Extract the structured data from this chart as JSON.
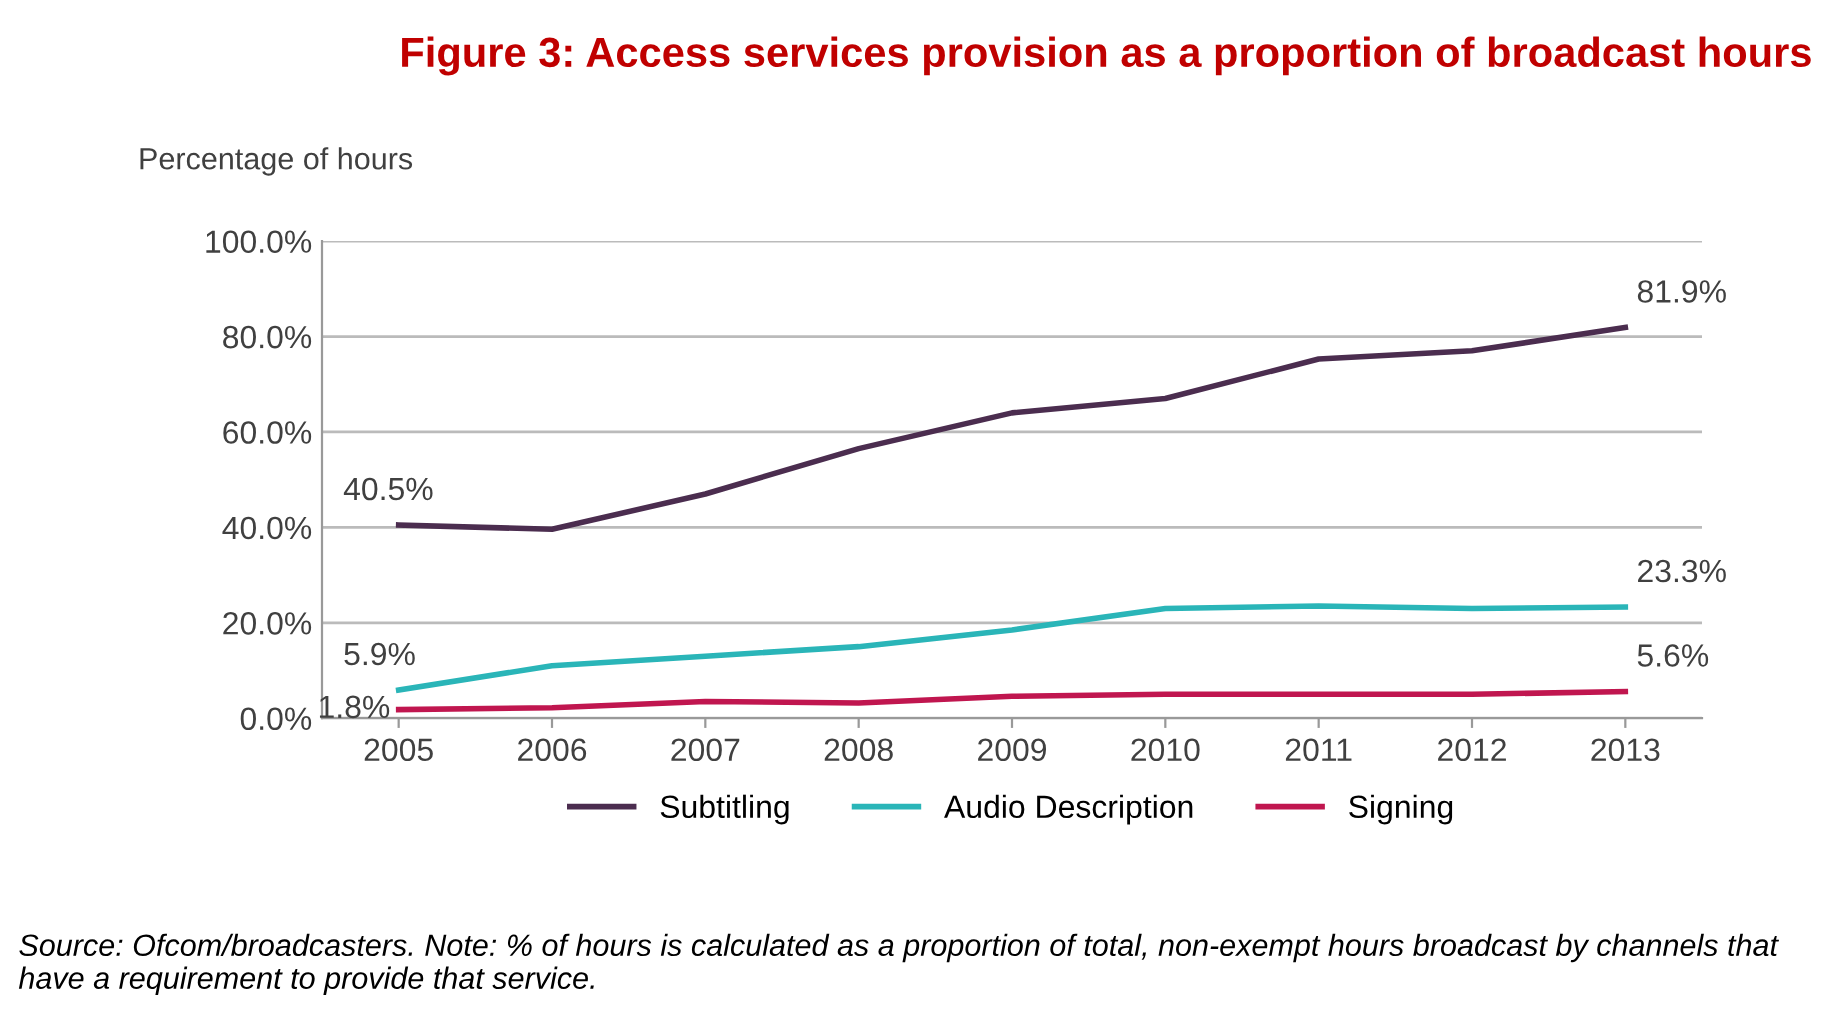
{
  "chart_data": {
    "type": "line",
    "title": "Figure 3: Access services provision as a proportion of broadcast hours",
    "ylabel": "Percentage of hours",
    "categories": [
      "2005",
      "2006",
      "2007",
      "2008",
      "2009",
      "2010",
      "2011",
      "2012",
      "2013"
    ],
    "series": [
      {
        "name": "Subtitling",
        "color": "#4b2d4f",
        "values": [
          40.5,
          39.6,
          47,
          56.5,
          64,
          67,
          75.3,
          77,
          81.9
        ]
      },
      {
        "name": "Audio Description",
        "color": "#2ab5b8",
        "values": [
          5.9,
          11,
          13,
          15,
          18.5,
          23,
          23.5,
          23,
          23.3
        ]
      },
      {
        "name": "Signing",
        "color": "#c0164f",
        "values": [
          1.8,
          2.2,
          3.5,
          3.2,
          4.6,
          5,
          5,
          5,
          5.6
        ]
      }
    ],
    "ylim": [
      0,
      100
    ],
    "yticks": [
      {
        "value": 0,
        "label": "0.0%"
      },
      {
        "value": 20,
        "label": "20.0%"
      },
      {
        "value": 40,
        "label": "40.0%"
      },
      {
        "value": 60,
        "label": "60.0%"
      },
      {
        "value": 80,
        "label": "80.0%"
      },
      {
        "value": 100,
        "label": "100.0%"
      }
    ],
    "grid": "y",
    "legend": "bottom",
    "marker": "none",
    "line_style": "solid",
    "annotations": [
      {
        "text": "40.5%",
        "x": "2005",
        "y": 40.5
      },
      {
        "text": "81.9%",
        "x": "2013",
        "y": 81.9
      },
      {
        "text": "5.9%",
        "x": "2005",
        "y": 5.9
      },
      {
        "text": "23.3%",
        "x": "2013",
        "y": 23.3
      },
      {
        "text": "1.8%",
        "x": "2005",
        "y": 1.8
      },
      {
        "text": "5.6%",
        "x": "2013",
        "y": 5.6
      },
      "Source: Ofcom/broadcasters. Note: % of hours is calculated as a proportion of total, non-exempt hours broadcast by channels that have a requirement to provide that service."
    ]
  }
}
